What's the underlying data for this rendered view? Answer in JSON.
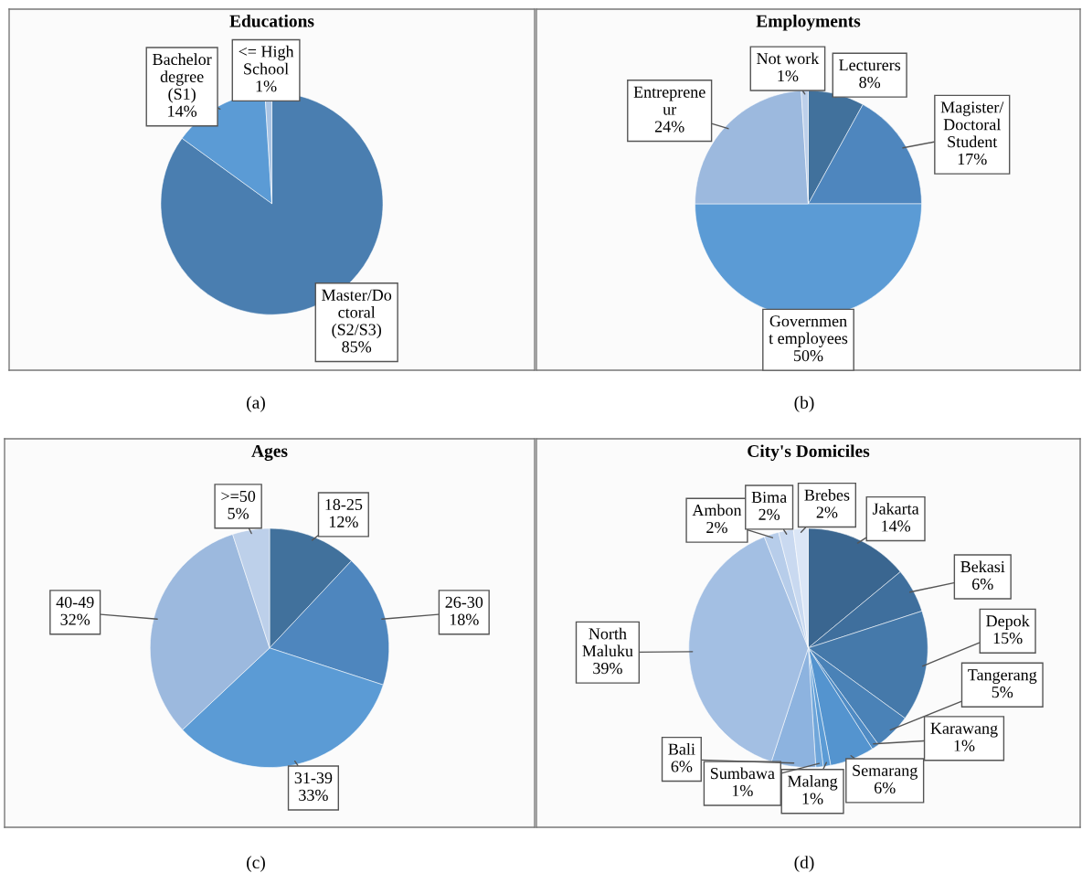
{
  "chart_data": [
    {
      "type": "pie",
      "title": "Educations",
      "categories": [
        "Master/Do\nctoral\n(S2/S3)",
        "Bachelor\ndegree\n(S1)",
        "<= High\nSchool"
      ],
      "values": [
        85,
        14,
        1
      ],
      "colors": [
        "#4a7eb0",
        "#5b9bd5",
        "#a9c4e4"
      ],
      "value_labels": [
        "85%",
        "14%",
        "1%"
      ],
      "annotations": [
        "(a)"
      ]
    },
    {
      "type": "pie",
      "title": "Employments",
      "categories": [
        "Lecturers",
        "Magister/\nDoctoral\nStudent",
        "Governmen\nt employees",
        "Entreprene\nur",
        "Not work"
      ],
      "values": [
        8,
        17,
        50,
        24,
        1
      ],
      "colors": [
        "#41719c",
        "#4e86be",
        "#5b9bd5",
        "#9cb9de",
        "#bdd0ea"
      ],
      "value_labels": [
        "8%",
        "17%",
        "50%",
        "24%",
        "1%"
      ],
      "annotations": [
        "(b)"
      ]
    },
    {
      "type": "pie",
      "title": "Ages",
      "categories": [
        "18-25",
        "26-30",
        "31-39",
        "40-49",
        ">=50"
      ],
      "values": [
        12,
        18,
        33,
        32,
        5
      ],
      "colors": [
        "#41719c",
        "#4e86be",
        "#5b9bd5",
        "#9cb9de",
        "#bdd0ea"
      ],
      "value_labels": [
        "12%",
        "18%",
        "33%",
        "32%",
        "5%"
      ],
      "annotations": [
        "(c)"
      ]
    },
    {
      "type": "pie",
      "title": "City's Domiciles",
      "categories": [
        "Jakarta",
        "Bekasi",
        "Depok",
        "Tangerang",
        "Karawang",
        "Semarang",
        "Malang",
        "Sumbawa",
        "Bali",
        "North\nMaluku",
        "Ambon",
        "Bima",
        "Brebes"
      ],
      "values": [
        14,
        6,
        15,
        5,
        1,
        6,
        1,
        1,
        6,
        39,
        2,
        2,
        2
      ],
      "colors": [
        "#3a6690",
        "#3f6f9d",
        "#4579aa",
        "#4a82b7",
        "#4f8bc4",
        "#5494cf",
        "#5b9bd5",
        "#6fa6da",
        "#8db3df",
        "#a3bfe3",
        "#b7cdea",
        "#c9d9f0",
        "#dbe6f6"
      ],
      "value_labels": [
        "14%",
        "6%",
        "15%",
        "5%",
        "1%",
        "6%",
        "1%",
        "1%",
        "6%",
        "39%",
        "2%",
        "2%",
        "2%"
      ],
      "annotations": [
        "(d)"
      ]
    }
  ]
}
